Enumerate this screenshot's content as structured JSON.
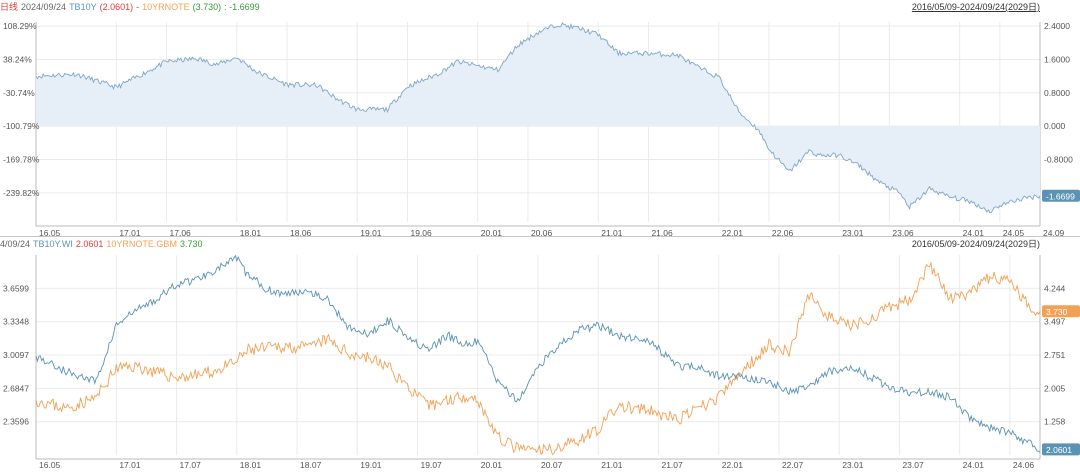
{
  "top": {
    "header": {
      "period": "日线",
      "date": "2024/09/24",
      "s1_name": "TB10Y",
      "s1_value": "(2.0601)",
      "sep": "-",
      "s2_name": "10YRNOTE",
      "s2_value": "(3.730)",
      "result_label": ": -1.6699"
    },
    "range": "2016/05/09-2024/09/24(2029日)",
    "last_badge": "-1.6699"
  },
  "bottom": {
    "header": {
      "date": "4/09/24",
      "s1_name": "TB10Y.WI",
      "s1_value": "2.0601",
      "s2_name": "10YRNOTE.GBM",
      "s2_value": "3.730"
    },
    "range": "2016/05/09-2024/09/24(2029日)",
    "badge_s1": "2.0601",
    "badge_s2": "3.730"
  },
  "colors": {
    "tb10y": "#5b93b5",
    "note": "#f2a154",
    "spread": "#7ea6c8",
    "area": "#e6eef7",
    "s1_value": "#e03c3c",
    "s2_value": "#f29b45",
    "result": "#3a9a3a"
  },
  "chart_data": [
    {
      "type": "area",
      "series": [
        {
          "name": "TB10Y - 10YRNOTE",
          "x": [
            "16.05",
            "16.09",
            "17.01",
            "17.04",
            "17.06",
            "17.09",
            "17.11",
            "18.01",
            "18.03",
            "18.06",
            "18.09",
            "18.11",
            "19.01",
            "19.04",
            "19.06",
            "19.09",
            "19.11",
            "20.01",
            "20.03",
            "20.05",
            "20.07",
            "20.09",
            "20.11",
            "21.01",
            "21.03",
            "21.06",
            "21.09",
            "21.11",
            "22.01",
            "22.03",
            "22.05",
            "22.06",
            "22.08",
            "22.10",
            "22.11",
            "23.01",
            "23.03",
            "23.05",
            "23.07",
            "23.08",
            "23.10",
            "23.12",
            "24.02",
            "24.04",
            "24.05",
            "24.07",
            "24.09"
          ],
          "values": [
            1.2,
            1.25,
            0.93,
            1.3,
            1.55,
            1.62,
            1.48,
            1.65,
            1.3,
            1.0,
            0.98,
            0.65,
            0.4,
            0.4,
            0.95,
            1.25,
            1.55,
            1.45,
            1.35,
            1.95,
            2.25,
            2.45,
            2.35,
            2.2,
            1.75,
            1.75,
            1.7,
            1.4,
            1.18,
            0.35,
            -0.1,
            -0.55,
            -1.1,
            -0.6,
            -0.7,
            -0.7,
            -0.95,
            -1.35,
            -1.6,
            -1.95,
            -1.5,
            -1.7,
            -1.8,
            -2.05,
            -1.9,
            -1.75,
            -1.67
          ]
        }
      ],
      "left_ticks": [
        "108.29%",
        "38.24%",
        "-30.74%",
        "-100.79%",
        "-169.78%",
        "-239.82%"
      ],
      "right_ticks": [
        "2.4000",
        "1.6000",
        "0.8000",
        "0.000",
        "-0.8000",
        "-1.6000"
      ],
      "x_ticks": [
        "16.05",
        "17.01",
        "17.06",
        "18.01",
        "18.06",
        "19.01",
        "19.06",
        "20.01",
        "20.06",
        "21.01",
        "21.06",
        "22.01",
        "22.06",
        "23.01",
        "23.06",
        "24.01",
        "24.05",
        "24.09"
      ],
      "ylim": [
        -2.3,
        2.5
      ]
    },
    {
      "type": "line",
      "series": [
        {
          "name": "TB10Y.WI",
          "x": [
            "16.05",
            "16.08",
            "16.11",
            "17.01",
            "17.03",
            "17.05",
            "17.07",
            "17.09",
            "17.11",
            "18.01",
            "18.02",
            "18.04",
            "18.06",
            "18.08",
            "18.10",
            "18.12",
            "19.02",
            "19.04",
            "19.06",
            "19.08",
            "19.10",
            "19.12",
            "20.01",
            "20.03",
            "20.05",
            "20.07",
            "20.09",
            "20.11",
            "21.01",
            "21.03",
            "21.06",
            "21.09",
            "21.11",
            "22.01",
            "22.03",
            "22.06",
            "22.08",
            "22.10",
            "22.12",
            "23.02",
            "23.04",
            "23.06",
            "23.08",
            "23.10",
            "23.12",
            "24.02",
            "24.04",
            "24.06",
            "24.08",
            "24.09"
          ],
          "values": [
            3.0,
            2.85,
            2.75,
            3.3,
            3.45,
            3.55,
            3.7,
            3.75,
            3.85,
            3.95,
            3.8,
            3.65,
            3.6,
            3.65,
            3.55,
            3.3,
            3.2,
            3.35,
            3.2,
            3.05,
            3.2,
            3.1,
            3.15,
            2.75,
            2.55,
            2.9,
            3.1,
            3.25,
            3.3,
            3.2,
            3.15,
            2.9,
            2.9,
            2.8,
            2.8,
            2.75,
            2.65,
            2.7,
            2.85,
            2.9,
            2.8,
            2.7,
            2.65,
            2.65,
            2.6,
            2.4,
            2.3,
            2.25,
            2.15,
            2.06
          ]
        },
        {
          "name": "10YRNOTE.GBM",
          "x": [
            "16.05",
            "16.08",
            "16.11",
            "17.01",
            "17.03",
            "17.05",
            "17.07",
            "17.09",
            "17.11",
            "18.01",
            "18.02",
            "18.04",
            "18.06",
            "18.08",
            "18.10",
            "18.12",
            "19.02",
            "19.04",
            "19.06",
            "19.08",
            "19.10",
            "19.12",
            "20.01",
            "20.03",
            "20.05",
            "20.07",
            "20.09",
            "20.11",
            "21.01",
            "21.03",
            "21.06",
            "21.09",
            "21.11",
            "22.01",
            "22.03",
            "22.06",
            "22.08",
            "22.10",
            "22.12",
            "23.02",
            "23.04",
            "23.06",
            "23.08",
            "23.10",
            "23.12",
            "24.02",
            "24.04",
            "24.06",
            "24.08",
            "24.09"
          ],
          "values": [
            1.75,
            1.55,
            1.8,
            2.45,
            2.5,
            2.35,
            2.25,
            2.3,
            2.4,
            2.6,
            2.85,
            2.9,
            2.95,
            2.9,
            3.1,
            2.8,
            2.7,
            2.5,
            2.05,
            1.6,
            1.75,
            1.85,
            1.75,
            0.9,
            0.65,
            0.6,
            0.68,
            0.85,
            1.1,
            1.6,
            1.5,
            1.3,
            1.55,
            1.8,
            2.3,
            3.0,
            2.8,
            4.1,
            3.6,
            3.4,
            3.55,
            3.8,
            4.0,
            4.8,
            4.0,
            4.1,
            4.5,
            4.4,
            3.8,
            3.73
          ]
        }
      ],
      "left_ticks": [
        "3.6599",
        "3.3348",
        "3.0097",
        "2.6847",
        "2.3596"
      ],
      "right_ticks": [
        "4.244",
        "3.497",
        "2.751",
        "2.005",
        "1.258"
      ],
      "x_ticks": [
        "16.05",
        "17.01",
        "17.07",
        "18.01",
        "18.07",
        "19.01",
        "19.07",
        "20.01",
        "20.07",
        "21.01",
        "21.07",
        "22.01",
        "22.07",
        "23.01",
        "23.07",
        "24.01",
        "24.06"
      ],
      "ylim_left": [
        2.035,
        3.985
      ],
      "ylim_right": [
        0.511,
        4.99
      ]
    }
  ]
}
